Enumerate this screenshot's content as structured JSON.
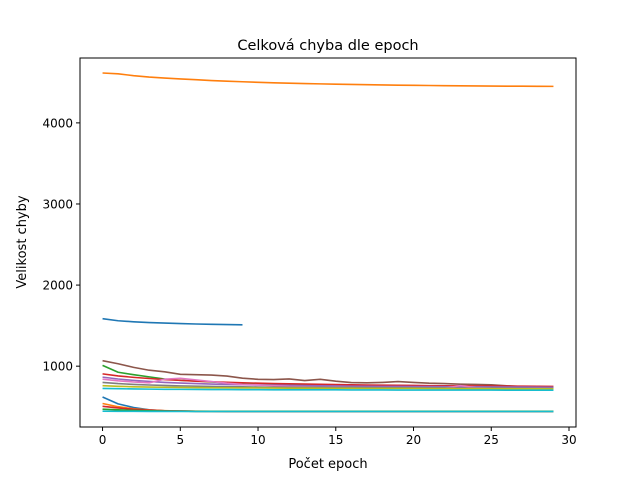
{
  "chart_data": {
    "type": "line",
    "title": "Celková chyba dle epoch",
    "xlabel": "Počet epoch",
    "ylabel": "Velikost chyby",
    "xlim": [
      -1.45,
      30.45
    ],
    "ylim": [
      250,
      4800
    ],
    "xticks": [
      0,
      5,
      10,
      15,
      20,
      25,
      30
    ],
    "yticks": [
      1000,
      2000,
      3000,
      4000
    ],
    "grid": false,
    "legend": "none",
    "series": [
      {
        "color": "#ff7f0e",
        "x": [
          0,
          1,
          2,
          3,
          4,
          5,
          6,
          7,
          8,
          9,
          10,
          11,
          12,
          13,
          14,
          15,
          16,
          17,
          18,
          19,
          20,
          21,
          22,
          23,
          24,
          25,
          26,
          27,
          28,
          29
        ],
        "values": [
          4615,
          4605,
          4582,
          4565,
          4553,
          4542,
          4532,
          4522,
          4514,
          4507,
          4500,
          4494,
          4489,
          4485,
          4481,
          4477,
          4474,
          4471,
          4468,
          4465,
          4463,
          4461,
          4459,
          4457,
          4455,
          4454,
          4453,
          4452,
          4451,
          4450
        ]
      },
      {
        "color": "#1f77b4",
        "x": [
          0,
          1,
          2,
          3,
          4,
          5,
          6,
          7,
          8,
          9
        ],
        "values": [
          1585,
          1560,
          1547,
          1538,
          1531,
          1525,
          1520,
          1516,
          1513,
          1510
        ]
      },
      {
        "color": "#8c564b",
        "x": [
          0,
          1,
          2,
          3,
          4,
          5,
          6,
          7,
          8,
          9,
          10,
          11,
          12,
          13,
          14,
          15,
          16,
          17,
          18,
          19,
          20,
          21,
          22,
          23,
          24,
          25,
          26,
          27,
          28,
          29
        ],
        "values": [
          1068,
          1030,
          985,
          950,
          930,
          900,
          895,
          890,
          878,
          852,
          838,
          835,
          843,
          823,
          838,
          815,
          798,
          795,
          800,
          810,
          800,
          790,
          785,
          778,
          775,
          770,
          758,
          748,
          742,
          735
        ]
      },
      {
        "color": "#2ca02c",
        "x": [
          0,
          1,
          2,
          3,
          4,
          5,
          6,
          7,
          8,
          9,
          10,
          11,
          12,
          13,
          14,
          15,
          16,
          17,
          18,
          19,
          20,
          21,
          22,
          23,
          24,
          25,
          26,
          27,
          28,
          29
        ],
        "values": [
          1010,
          925,
          895,
          868,
          842,
          825,
          818,
          805,
          795,
          782,
          775,
          770,
          768,
          763,
          760,
          757,
          755,
          752,
          750,
          748,
          746,
          744,
          742,
          740,
          738,
          737,
          736,
          735,
          733,
          732
        ]
      },
      {
        "color": "#d62728",
        "x": [
          0,
          1,
          2,
          3,
          4,
          5,
          6,
          7,
          8,
          9,
          10,
          11,
          12,
          13,
          14,
          15,
          16,
          17,
          18,
          19,
          20,
          21,
          22,
          23,
          24,
          25,
          26,
          27,
          28,
          29
        ],
        "values": [
          905,
          880,
          862,
          848,
          835,
          825,
          815,
          808,
          801,
          795,
          790,
          786,
          782,
          779,
          776,
          773,
          770,
          768,
          766,
          764,
          762,
          760,
          758,
          757,
          756,
          755,
          754,
          753,
          752,
          751
        ]
      },
      {
        "color": "#9467bd",
        "x": [
          0,
          1,
          2,
          3,
          4,
          5,
          6,
          7,
          8,
          9,
          10,
          11,
          12,
          13,
          14,
          15,
          16,
          17,
          18,
          19,
          20,
          21,
          22,
          23,
          24,
          25,
          26,
          27,
          28,
          29
        ],
        "values": [
          865,
          842,
          825,
          812,
          800,
          792,
          786,
          780,
          775,
          771,
          768,
          765,
          762,
          760,
          758,
          756,
          754,
          752,
          751,
          750,
          749,
          748,
          747,
          746,
          745,
          744,
          743,
          742,
          741,
          740
        ]
      },
      {
        "color": "#e377c2",
        "x": [
          0,
          1,
          2,
          3,
          4,
          5,
          6,
          7,
          8,
          9,
          10,
          11,
          12,
          13,
          14,
          15,
          16,
          17,
          18,
          19,
          20,
          21,
          22,
          23,
          24,
          25,
          26,
          27,
          28,
          29
        ],
        "values": [
          840,
          820,
          805,
          795,
          840,
          850,
          830,
          810,
          790,
          775,
          770,
          760,
          750,
          745,
          740,
          738,
          735,
          733,
          731,
          730,
          729,
          728,
          727,
          760,
          735,
          728,
          727,
          726,
          725,
          724
        ]
      },
      {
        "color": "#7f7f7f",
        "x": [
          0,
          1,
          2,
          3,
          4,
          5,
          6,
          7,
          8,
          9,
          10,
          11,
          12,
          13,
          14,
          15,
          16,
          17,
          18,
          19,
          20,
          21,
          22,
          23,
          24,
          25,
          26,
          27,
          28,
          29
        ],
        "values": [
          800,
          785,
          775,
          768,
          762,
          757,
          753,
          750,
          747,
          745,
          743,
          741,
          740,
          739,
          738,
          737,
          736,
          735,
          734,
          733,
          732,
          731,
          730,
          729,
          728,
          728,
          727,
          727,
          726,
          726
        ]
      },
      {
        "color": "#bcbd22",
        "x": [
          0,
          1,
          2,
          3,
          4,
          5,
          6,
          7,
          8,
          9,
          10,
          11,
          12,
          13,
          14,
          15,
          16,
          17,
          18,
          19,
          20,
          21,
          22,
          23,
          24,
          25,
          26,
          27,
          28,
          29
        ],
        "values": [
          760,
          752,
          746,
          742,
          740,
          738,
          736,
          734,
          733,
          732,
          731,
          730,
          729,
          728,
          728,
          727,
          727,
          726,
          726,
          725,
          725,
          724,
          724,
          723,
          723,
          722,
          722,
          721,
          721,
          720
        ]
      },
      {
        "color": "#17becf",
        "x": [
          0,
          1,
          2,
          3,
          4,
          5,
          6,
          7,
          8,
          9,
          10,
          11,
          12,
          13,
          14,
          15,
          16,
          17,
          18,
          19,
          20,
          21,
          22,
          23,
          24,
          25,
          26,
          27,
          28,
          29
        ],
        "values": [
          725,
          722,
          719,
          717,
          715,
          714,
          713,
          712,
          711,
          710,
          710,
          709,
          709,
          708,
          708,
          708,
          707,
          707,
          707,
          706,
          706,
          706,
          705,
          705,
          705,
          705,
          704,
          704,
          704,
          704
        ]
      },
      {
        "color": "#1f77b4",
        "x": [
          0,
          1,
          2,
          3,
          4,
          5,
          6,
          7,
          8,
          9,
          10,
          11,
          12,
          13,
          14,
          15,
          16,
          17,
          18,
          19,
          20,
          21,
          22,
          23,
          24,
          25,
          26,
          27,
          28,
          29
        ],
        "values": [
          620,
          535,
          490,
          462,
          450,
          446,
          444,
          443,
          442,
          442,
          442,
          442,
          442,
          442,
          442,
          442,
          442,
          442,
          442,
          442,
          442,
          442,
          442,
          442,
          442,
          442,
          442,
          442,
          442,
          442
        ]
      },
      {
        "color": "#ff7f0e",
        "x": [
          0,
          1,
          2,
          3,
          4,
          5,
          6,
          7,
          8,
          9,
          10,
          11,
          12,
          13,
          14,
          15,
          16,
          17,
          18,
          19,
          20,
          21,
          22,
          23,
          24,
          25,
          26,
          27,
          28,
          29
        ],
        "values": [
          540,
          500,
          475,
          460,
          452,
          447,
          445,
          444,
          443,
          443,
          443,
          443,
          443,
          443,
          443,
          443,
          443,
          443,
          443,
          443,
          443,
          443,
          443,
          443,
          443,
          443,
          443,
          443,
          443,
          443
        ]
      },
      {
        "color": "#d62728",
        "x": [
          0,
          1,
          2,
          3,
          4,
          5,
          6,
          7,
          8,
          9,
          10,
          11,
          12,
          13,
          14,
          15,
          16,
          17,
          18,
          19,
          20,
          21,
          22,
          23,
          24,
          25,
          26,
          27,
          28,
          29
        ],
        "values": [
          505,
          485,
          468,
          457,
          450,
          446,
          444,
          443,
          442,
          442,
          442,
          442,
          442,
          442,
          442,
          442,
          442,
          442,
          442,
          442,
          442,
          442,
          442,
          442,
          442,
          442,
          442,
          442,
          442,
          442
        ]
      },
      {
        "color": "#2ca02c",
        "x": [
          0,
          1,
          2,
          3,
          4,
          5,
          6,
          7,
          8,
          9,
          10,
          11,
          12,
          13,
          14,
          15,
          16,
          17,
          18,
          19,
          20,
          21,
          22,
          23,
          24,
          25,
          26,
          27,
          28,
          29
        ],
        "values": [
          470,
          462,
          455,
          450,
          447,
          445,
          444,
          443,
          443,
          443,
          443,
          443,
          443,
          443,
          443,
          443,
          443,
          443,
          443,
          443,
          443,
          443,
          443,
          443,
          443,
          443,
          443,
          443,
          443,
          443
        ]
      },
      {
        "color": "#17becf",
        "x": [
          0,
          1,
          2,
          3,
          4,
          5,
          6,
          7,
          8,
          9,
          10,
          11,
          12,
          13,
          14,
          15,
          16,
          17,
          18,
          19,
          20,
          21,
          22,
          23,
          24,
          25,
          26,
          27,
          28,
          29
        ],
        "values": [
          445,
          444,
          443,
          442,
          442,
          442,
          441,
          441,
          441,
          441,
          441,
          441,
          441,
          441,
          441,
          441,
          441,
          441,
          441,
          441,
          441,
          441,
          441,
          441,
          441,
          441,
          441,
          441,
          441,
          441
        ]
      }
    ]
  }
}
